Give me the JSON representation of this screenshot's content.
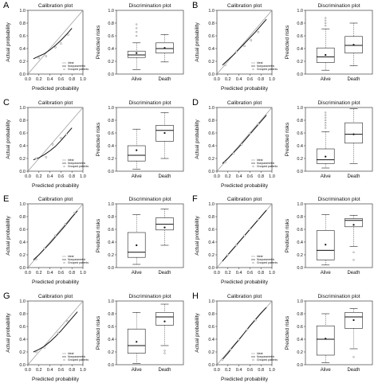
{
  "labels": {
    "calib_title": "Calibration plot",
    "discrim_title": "Discrimination plot",
    "calib_xlabel": "Predicted probability",
    "calib_ylabel": "Actual probability",
    "discrim_ylabel": "Predicted risks",
    "legend_ideal": "Ideal",
    "legend_nonparam": "Nonparametric",
    "legend_grouped": "Grouped patients",
    "group_alive": "Alive",
    "group_death": "Death",
    "calib_ticks": [
      "0.0",
      "0.2",
      "0.4",
      "0.6",
      "0.8",
      "1.0"
    ],
    "discrim_ticks": [
      "0.0",
      "0.2",
      "0.4",
      "0.6",
      "0.8",
      "1.0"
    ]
  },
  "chart_data": [
    {
      "panel": "A",
      "calibration": {
        "type": "line",
        "xlim": [
          0,
          1
        ],
        "ylim": [
          0,
          1
        ],
        "curve_x": [
          0.1,
          0.2,
          0.3,
          0.4,
          0.5,
          0.6,
          0.7,
          0.8
        ],
        "curve_y": [
          0.24,
          0.28,
          0.32,
          0.38,
          0.45,
          0.53,
          0.62,
          0.72
        ],
        "grouped_x": [
          0.2,
          0.33,
          0.5,
          0.6,
          0.73
        ],
        "grouped_y": [
          0.25,
          0.28,
          0.42,
          0.48,
          0.62
        ]
      },
      "discrimination": {
        "type": "box",
        "ylim": [
          0,
          1
        ],
        "categories": [
          "Alive",
          "Death"
        ],
        "boxes": [
          {
            "min": 0.07,
            "q1": 0.26,
            "median": 0.3,
            "q3": 0.36,
            "max": 0.49,
            "mean": 0.33,
            "outliers": [
              0.6,
              0.66,
              0.72,
              0.78
            ]
          },
          {
            "min": 0.19,
            "q1": 0.33,
            "median": 0.4,
            "q3": 0.49,
            "max": 0.62,
            "mean": 0.41,
            "outliers": []
          }
        ]
      }
    },
    {
      "panel": "B",
      "calibration": {
        "type": "line",
        "xlim": [
          0,
          1
        ],
        "ylim": [
          0,
          1
        ],
        "curve_x": [
          0.1,
          0.2,
          0.3,
          0.4,
          0.5,
          0.6,
          0.7,
          0.8,
          0.9
        ],
        "curve_y": [
          0.14,
          0.22,
          0.3,
          0.39,
          0.48,
          0.57,
          0.66,
          0.76,
          0.86
        ],
        "grouped_x": [
          0.15,
          0.35,
          0.5,
          0.62,
          0.75
        ],
        "grouped_y": [
          0.14,
          0.35,
          0.44,
          0.53,
          0.66
        ]
      },
      "discrimination": {
        "type": "box",
        "ylim": [
          0,
          1
        ],
        "categories": [
          "Alive",
          "Death"
        ],
        "boxes": [
          {
            "min": 0.06,
            "q1": 0.18,
            "median": 0.27,
            "q3": 0.41,
            "max": 0.71,
            "mean": 0.3,
            "outliers": [
              0.76,
              0.8,
              0.84,
              0.88
            ]
          },
          {
            "min": 0.13,
            "q1": 0.33,
            "median": 0.45,
            "q3": 0.59,
            "max": 0.8,
            "mean": 0.46,
            "outliers": []
          }
        ]
      }
    },
    {
      "panel": "C",
      "calibration": {
        "type": "line",
        "xlim": [
          0,
          1
        ],
        "ylim": [
          0,
          1
        ],
        "curve_x": [
          0.1,
          0.2,
          0.3,
          0.4,
          0.5,
          0.6,
          0.7,
          0.8
        ],
        "curve_y": [
          0.18,
          0.21,
          0.26,
          0.32,
          0.39,
          0.48,
          0.58,
          0.68
        ],
        "grouped_x": [
          0.15,
          0.33,
          0.45,
          0.6,
          0.7
        ],
        "grouped_y": [
          0.2,
          0.22,
          0.42,
          0.52,
          0.58
        ]
      },
      "discrimination": {
        "type": "box",
        "ylim": [
          0,
          1
        ],
        "categories": [
          "Alive",
          "Death"
        ],
        "boxes": [
          {
            "min": 0.03,
            "q1": 0.16,
            "median": 0.25,
            "q3": 0.4,
            "max": 0.66,
            "mean": 0.33,
            "outliers": []
          },
          {
            "min": 0.2,
            "q1": 0.47,
            "median": 0.64,
            "q3": 0.72,
            "max": 0.92,
            "mean": 0.6,
            "outliers": []
          }
        ]
      }
    },
    {
      "panel": "D",
      "calibration": {
        "type": "line",
        "xlim": [
          0,
          1
        ],
        "ylim": [
          0,
          1
        ],
        "curve_x": [
          0.1,
          0.2,
          0.3,
          0.4,
          0.5,
          0.6,
          0.7,
          0.8,
          0.9
        ],
        "curve_y": [
          0.12,
          0.2,
          0.29,
          0.38,
          0.48,
          0.58,
          0.68,
          0.78,
          0.88
        ],
        "grouped_x": [
          0.15,
          0.3,
          0.45,
          0.6,
          0.75
        ],
        "grouped_y": [
          0.14,
          0.28,
          0.42,
          0.59,
          0.74
        ]
      },
      "discrimination": {
        "type": "box",
        "ylim": [
          0,
          1
        ],
        "categories": [
          "Alive",
          "Death"
        ],
        "boxes": [
          {
            "min": 0.05,
            "q1": 0.12,
            "median": 0.18,
            "q3": 0.35,
            "max": 0.62,
            "mean": 0.23,
            "outliers": [
              0.68,
              0.72,
              0.76,
              0.8,
              0.84,
              0.88,
              0.92
            ]
          },
          {
            "min": 0.12,
            "q1": 0.44,
            "median": 0.58,
            "q3": 0.76,
            "max": 0.98,
            "mean": 0.58,
            "outliers": []
          }
        ]
      }
    },
    {
      "panel": "E",
      "calibration": {
        "type": "line",
        "xlim": [
          0,
          1
        ],
        "ylim": [
          0,
          1
        ],
        "curve_x": [
          0.1,
          0.2,
          0.3,
          0.4,
          0.5,
          0.6,
          0.7,
          0.8,
          0.9
        ],
        "curve_y": [
          0.12,
          0.2,
          0.29,
          0.38,
          0.48,
          0.58,
          0.68,
          0.79,
          0.89
        ],
        "grouped_x": [
          0.15,
          0.3,
          0.5,
          0.68,
          0.85
        ],
        "grouped_y": [
          0.13,
          0.3,
          0.5,
          0.68,
          0.86
        ]
      },
      "discrimination": {
        "type": "box",
        "ylim": [
          0,
          1
        ],
        "categories": [
          "Alive",
          "Death"
        ],
        "boxes": [
          {
            "min": 0.05,
            "q1": 0.16,
            "median": 0.24,
            "q3": 0.55,
            "max": 0.83,
            "mean": 0.35,
            "outliers": []
          },
          {
            "min": 0.35,
            "q1": 0.59,
            "median": 0.68,
            "q3": 0.78,
            "max": 0.92,
            "mean": 0.63,
            "outliers": []
          }
        ]
      }
    },
    {
      "panel": "F",
      "calibration": {
        "type": "line",
        "xlim": [
          0,
          1
        ],
        "ylim": [
          0,
          1
        ],
        "curve_x": [
          0.1,
          0.2,
          0.3,
          0.4,
          0.5,
          0.6,
          0.7,
          0.8,
          0.9
        ],
        "curve_y": [
          0.1,
          0.2,
          0.3,
          0.4,
          0.5,
          0.6,
          0.7,
          0.8,
          0.9
        ],
        "grouped_x": [
          0.2,
          0.35,
          0.5,
          0.6,
          0.75
        ],
        "grouped_y": [
          0.2,
          0.35,
          0.5,
          0.6,
          0.75
        ]
      },
      "discrimination": {
        "type": "box",
        "ylim": [
          0,
          1
        ],
        "categories": [
          "Alive",
          "Death"
        ],
        "boxes": [
          {
            "min": 0.04,
            "q1": 0.12,
            "median": 0.27,
            "q3": 0.58,
            "max": 0.83,
            "mean": 0.36,
            "outliers": []
          },
          {
            "min": 0.33,
            "q1": 0.64,
            "median": 0.74,
            "q3": 0.77,
            "max": 0.82,
            "mean": 0.67,
            "outliers": [
              0.24,
              0.12
            ]
          }
        ]
      }
    },
    {
      "panel": "G",
      "calibration": {
        "type": "line",
        "xlim": [
          0,
          1
        ],
        "ylim": [
          0,
          1
        ],
        "curve_x": [
          0.1,
          0.2,
          0.3,
          0.4,
          0.5,
          0.6,
          0.7,
          0.8,
          0.9
        ],
        "curve_y": [
          0.2,
          0.24,
          0.29,
          0.36,
          0.44,
          0.53,
          0.63,
          0.73,
          0.83
        ],
        "grouped_x": [
          0.15,
          0.3,
          0.55,
          0.72
        ],
        "grouped_y": [
          0.2,
          0.27,
          0.5,
          0.68
        ]
      },
      "discrimination": {
        "type": "box",
        "ylim": [
          0,
          1
        ],
        "categories": [
          "Alive",
          "Death"
        ],
        "boxes": [
          {
            "min": 0.02,
            "q1": 0.18,
            "median": 0.3,
            "q3": 0.56,
            "max": 0.82,
            "mean": 0.36,
            "outliers": []
          },
          {
            "min": 0.3,
            "q1": 0.62,
            "median": 0.75,
            "q3": 0.82,
            "max": 0.95,
            "mean": 0.68,
            "outliers": [
              0.22,
              0.18
            ]
          }
        ]
      }
    },
    {
      "panel": "H",
      "calibration": {
        "type": "line",
        "xlim": [
          0,
          1
        ],
        "ylim": [
          0,
          1
        ],
        "curve_x": [
          0.1,
          0.2,
          0.3,
          0.4,
          0.5,
          0.6,
          0.7,
          0.8,
          0.9
        ],
        "curve_y": [
          0.08,
          0.18,
          0.29,
          0.39,
          0.5,
          0.61,
          0.71,
          0.81,
          0.9
        ],
        "grouped_x": [
          0.1,
          0.25,
          0.4,
          0.55,
          0.7
        ],
        "grouped_y": [
          0.08,
          0.24,
          0.39,
          0.55,
          0.7
        ]
      },
      "discrimination": {
        "type": "box",
        "ylim": [
          0,
          1
        ],
        "categories": [
          "Alive",
          "Death"
        ],
        "boxes": [
          {
            "min": 0.03,
            "q1": 0.15,
            "median": 0.4,
            "q3": 0.61,
            "max": 0.8,
            "mean": 0.41,
            "outliers": []
          },
          {
            "min": 0.25,
            "q1": 0.57,
            "median": 0.75,
            "q3": 0.82,
            "max": 0.88,
            "mean": 0.7,
            "outliers": [
              0.12
            ]
          }
        ]
      }
    }
  ]
}
